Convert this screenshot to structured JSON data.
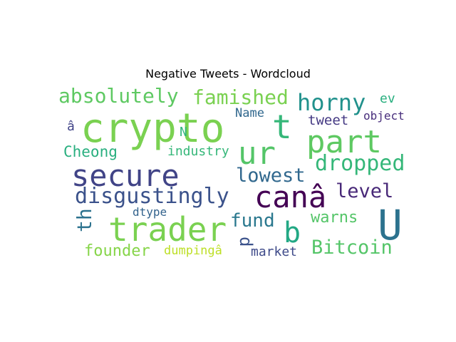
{
  "title": "Negative Tweets - Wordcloud",
  "chart_data": {
    "type": "wordcloud",
    "title": "Negative Tweets - Wordcloud",
    "words": [
      {
        "text": "crypto",
        "color": "#7ad151"
      },
      {
        "text": "secure",
        "color": "#414487"
      },
      {
        "text": "trader",
        "color": "#7ad151"
      },
      {
        "text": "part",
        "color": "#5ec962"
      },
      {
        "text": "canâ",
        "color": "#440154"
      },
      {
        "text": "ur",
        "color": "#54c568"
      },
      {
        "text": "U",
        "color": "#2c728e"
      },
      {
        "text": "disgustingly",
        "color": "#3b528b"
      },
      {
        "text": "t",
        "color": "#35b779"
      },
      {
        "text": "b",
        "color": "#22a884"
      },
      {
        "text": "absolutely",
        "color": "#5ec962"
      },
      {
        "text": "famished",
        "color": "#7ad151"
      },
      {
        "text": "horny",
        "color": "#21918c"
      },
      {
        "text": "dropped",
        "color": "#35b779"
      },
      {
        "text": "lowest",
        "color": "#31688e"
      },
      {
        "text": "level",
        "color": "#482878"
      },
      {
        "text": "Bitcoin",
        "color": "#54c568"
      },
      {
        "text": "fund",
        "color": "#2a788e"
      },
      {
        "text": "founder",
        "color": "#86d549"
      },
      {
        "text": "warns",
        "color": "#54c568"
      },
      {
        "text": "th",
        "color": "#2c728e"
      },
      {
        "text": "Cheong",
        "color": "#29af7f"
      },
      {
        "text": "d",
        "color": "#3b528b"
      },
      {
        "text": "industry",
        "color": "#35b779"
      },
      {
        "text": "dumpingâ",
        "color": "#bddf26"
      },
      {
        "text": "market",
        "color": "#3e4a89"
      },
      {
        "text": "tweet",
        "color": "#443983"
      },
      {
        "text": "Name",
        "color": "#31688e"
      },
      {
        "text": "ev",
        "color": "#29af7f"
      },
      {
        "text": "object",
        "color": "#472d7b"
      },
      {
        "text": "dtype",
        "color": "#33638d"
      },
      {
        "text": "N",
        "color": "#2fb47c"
      },
      {
        "text": "â",
        "color": "#404387"
      }
    ]
  }
}
